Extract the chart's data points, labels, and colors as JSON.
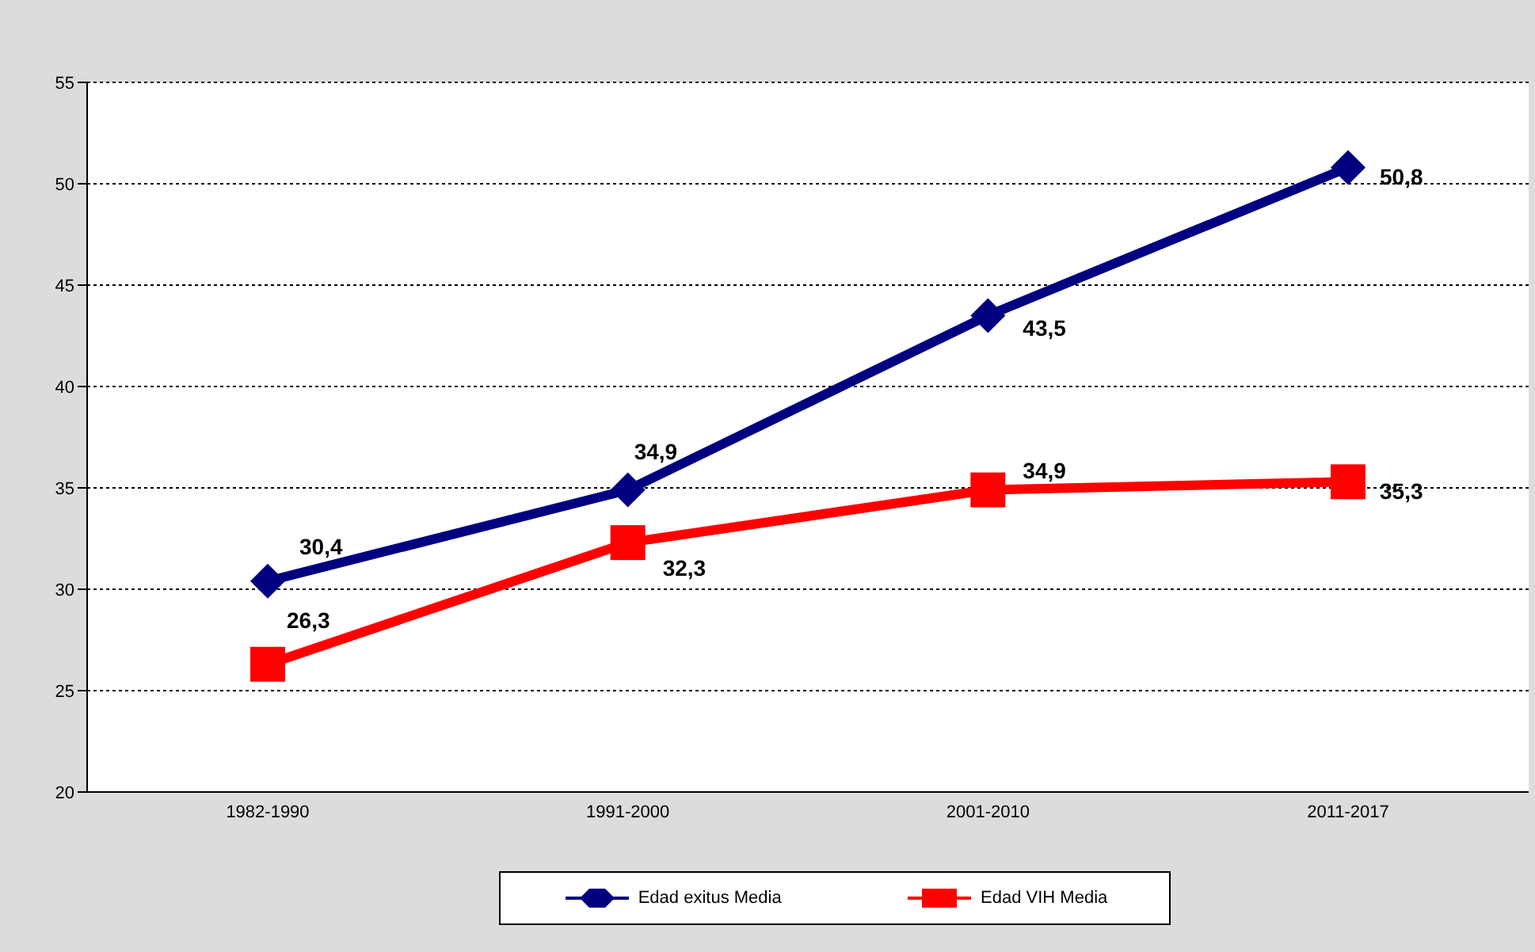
{
  "chart_data": {
    "type": "line",
    "categories": [
      "1982-1990",
      "1991-2000",
      "2001-2010",
      "2011-2017"
    ],
    "series": [
      {
        "name": "Edad exitus Media",
        "color": "#000080",
        "marker": "diamond",
        "values": [
          30.4,
          34.9,
          43.5,
          50.8
        ],
        "value_labels": [
          "30,4",
          "34,9",
          "43,5",
          "50,8"
        ]
      },
      {
        "name": "Edad VIH Media",
        "color": "#ff0000",
        "marker": "square",
        "values": [
          26.3,
          32.3,
          34.9,
          35.3
        ],
        "value_labels": [
          "26,3",
          "32,3",
          "34,9",
          "35,3"
        ]
      }
    ],
    "ylim": [
      20,
      55
    ],
    "yticks": [
      20,
      25,
      30,
      35,
      40,
      45,
      50,
      55
    ],
    "grid": "y",
    "legend": "bottom",
    "line_style": "solid"
  }
}
